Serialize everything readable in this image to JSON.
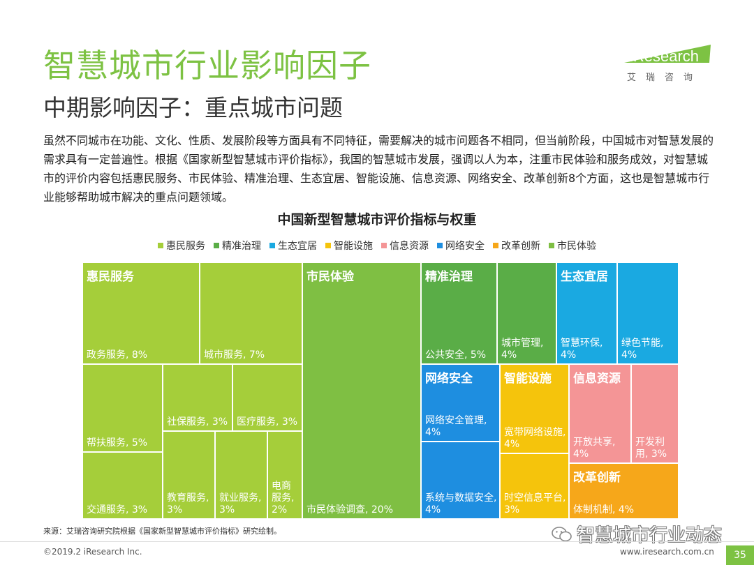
{
  "header": {
    "title": "智慧城市行业影响因子",
    "subtitle": "中期影响因子：重点城市问题"
  },
  "logo": {
    "name": "iResearch",
    "sub": "艾瑞咨询"
  },
  "intro": "虽然不同城市在功能、文化、性质、发展阶段等方面具有不同特征，需要解决的城市问题各不相同，但当前阶段，中国城市对智慧发展的需求具有一定普遍性。根据《国家新型智慧城市评价指标》，我国的智慧城市发展，强调以人为本，注重市民体验和服务成效，对智慧城市的评价内容包括惠民服务、市民体验、精准治理、生态宜居、智能设施、信息资源、网络安全、改革创新8个方面，这也是智慧城市行业能够帮助城市解决的重点问题领域。",
  "chart_data": {
    "type": "treemap",
    "title": "中国新型智慧城市评价指标与权重",
    "legend": [
      {
        "name": "惠民服务",
        "color": "#a5ce3a"
      },
      {
        "name": "精准治理",
        "color": "#5aad47"
      },
      {
        "name": "生态宜居",
        "color": "#1aa9e1"
      },
      {
        "name": "智能设施",
        "color": "#f5c40c"
      },
      {
        "name": "信息资源",
        "color": "#f49596"
      },
      {
        "name": "网络安全",
        "color": "#1e8ee0"
      },
      {
        "name": "改革创新",
        "color": "#f6a71a"
      },
      {
        "name": "市民体验",
        "color": "#7fbf43"
      }
    ],
    "groups": [
      {
        "name": "惠民服务",
        "color": "#a5ce3a",
        "items": [
          {
            "label": "政务服务, 8%",
            "value": 8
          },
          {
            "label": "城市服务, 7%",
            "value": 7
          },
          {
            "label": "帮扶服务, 5%",
            "value": 5
          },
          {
            "label": "交通服务, 3%",
            "value": 3
          },
          {
            "label": "社保服务, 3%",
            "value": 3
          },
          {
            "label": "医疗服务, 3%",
            "value": 3
          },
          {
            "label": "教育服务, 3%",
            "value": 3
          },
          {
            "label": "就业服务, 3%",
            "value": 3
          },
          {
            "label": "电商服务, 2%",
            "value": 2
          }
        ]
      },
      {
        "name": "市民体验",
        "color": "#7fbf43",
        "items": [
          {
            "label": "市民体验调查, 20%",
            "value": 20
          }
        ]
      },
      {
        "name": "精准治理",
        "color": "#5aad47",
        "items": [
          {
            "label": "公共安全, 5%",
            "value": 5
          },
          {
            "label": "城市管理, 4%",
            "value": 4
          }
        ]
      },
      {
        "name": "生态宜居",
        "color": "#1aa9e1",
        "items": [
          {
            "label": "智慧环保, 4%",
            "value": 4
          },
          {
            "label": "绿色节能, 4%",
            "value": 4
          }
        ]
      },
      {
        "name": "网络安全",
        "color": "#1e8ee0",
        "items": [
          {
            "label": "网络安全管理, 4%",
            "value": 4
          },
          {
            "label": "系统与数据安全, 4%",
            "value": 4
          }
        ]
      },
      {
        "name": "智能设施",
        "color": "#f5c40c",
        "items": [
          {
            "label": "宽带网络设施, 4%",
            "value": 4
          },
          {
            "label": "时空信息平台, 3%",
            "value": 3
          }
        ]
      },
      {
        "name": "信息资源",
        "color": "#f49596",
        "items": [
          {
            "label": "开放共享, 4%",
            "value": 4
          },
          {
            "label": "开发利用, 3%",
            "value": 3
          }
        ]
      },
      {
        "name": "改革创新",
        "color": "#f6a71a",
        "items": [
          {
            "label": "体制机制, 4%",
            "value": 4
          }
        ]
      }
    ]
  },
  "footer": {
    "source": "来源：艾瑞咨询研究院根据《国家新型智慧城市评价指标》研究绘制。",
    "copyright": "©2019.2 iResearch Inc.",
    "site": "www.iresearch.com.cn",
    "page": "35",
    "watermark": "智慧城市行业动态"
  }
}
